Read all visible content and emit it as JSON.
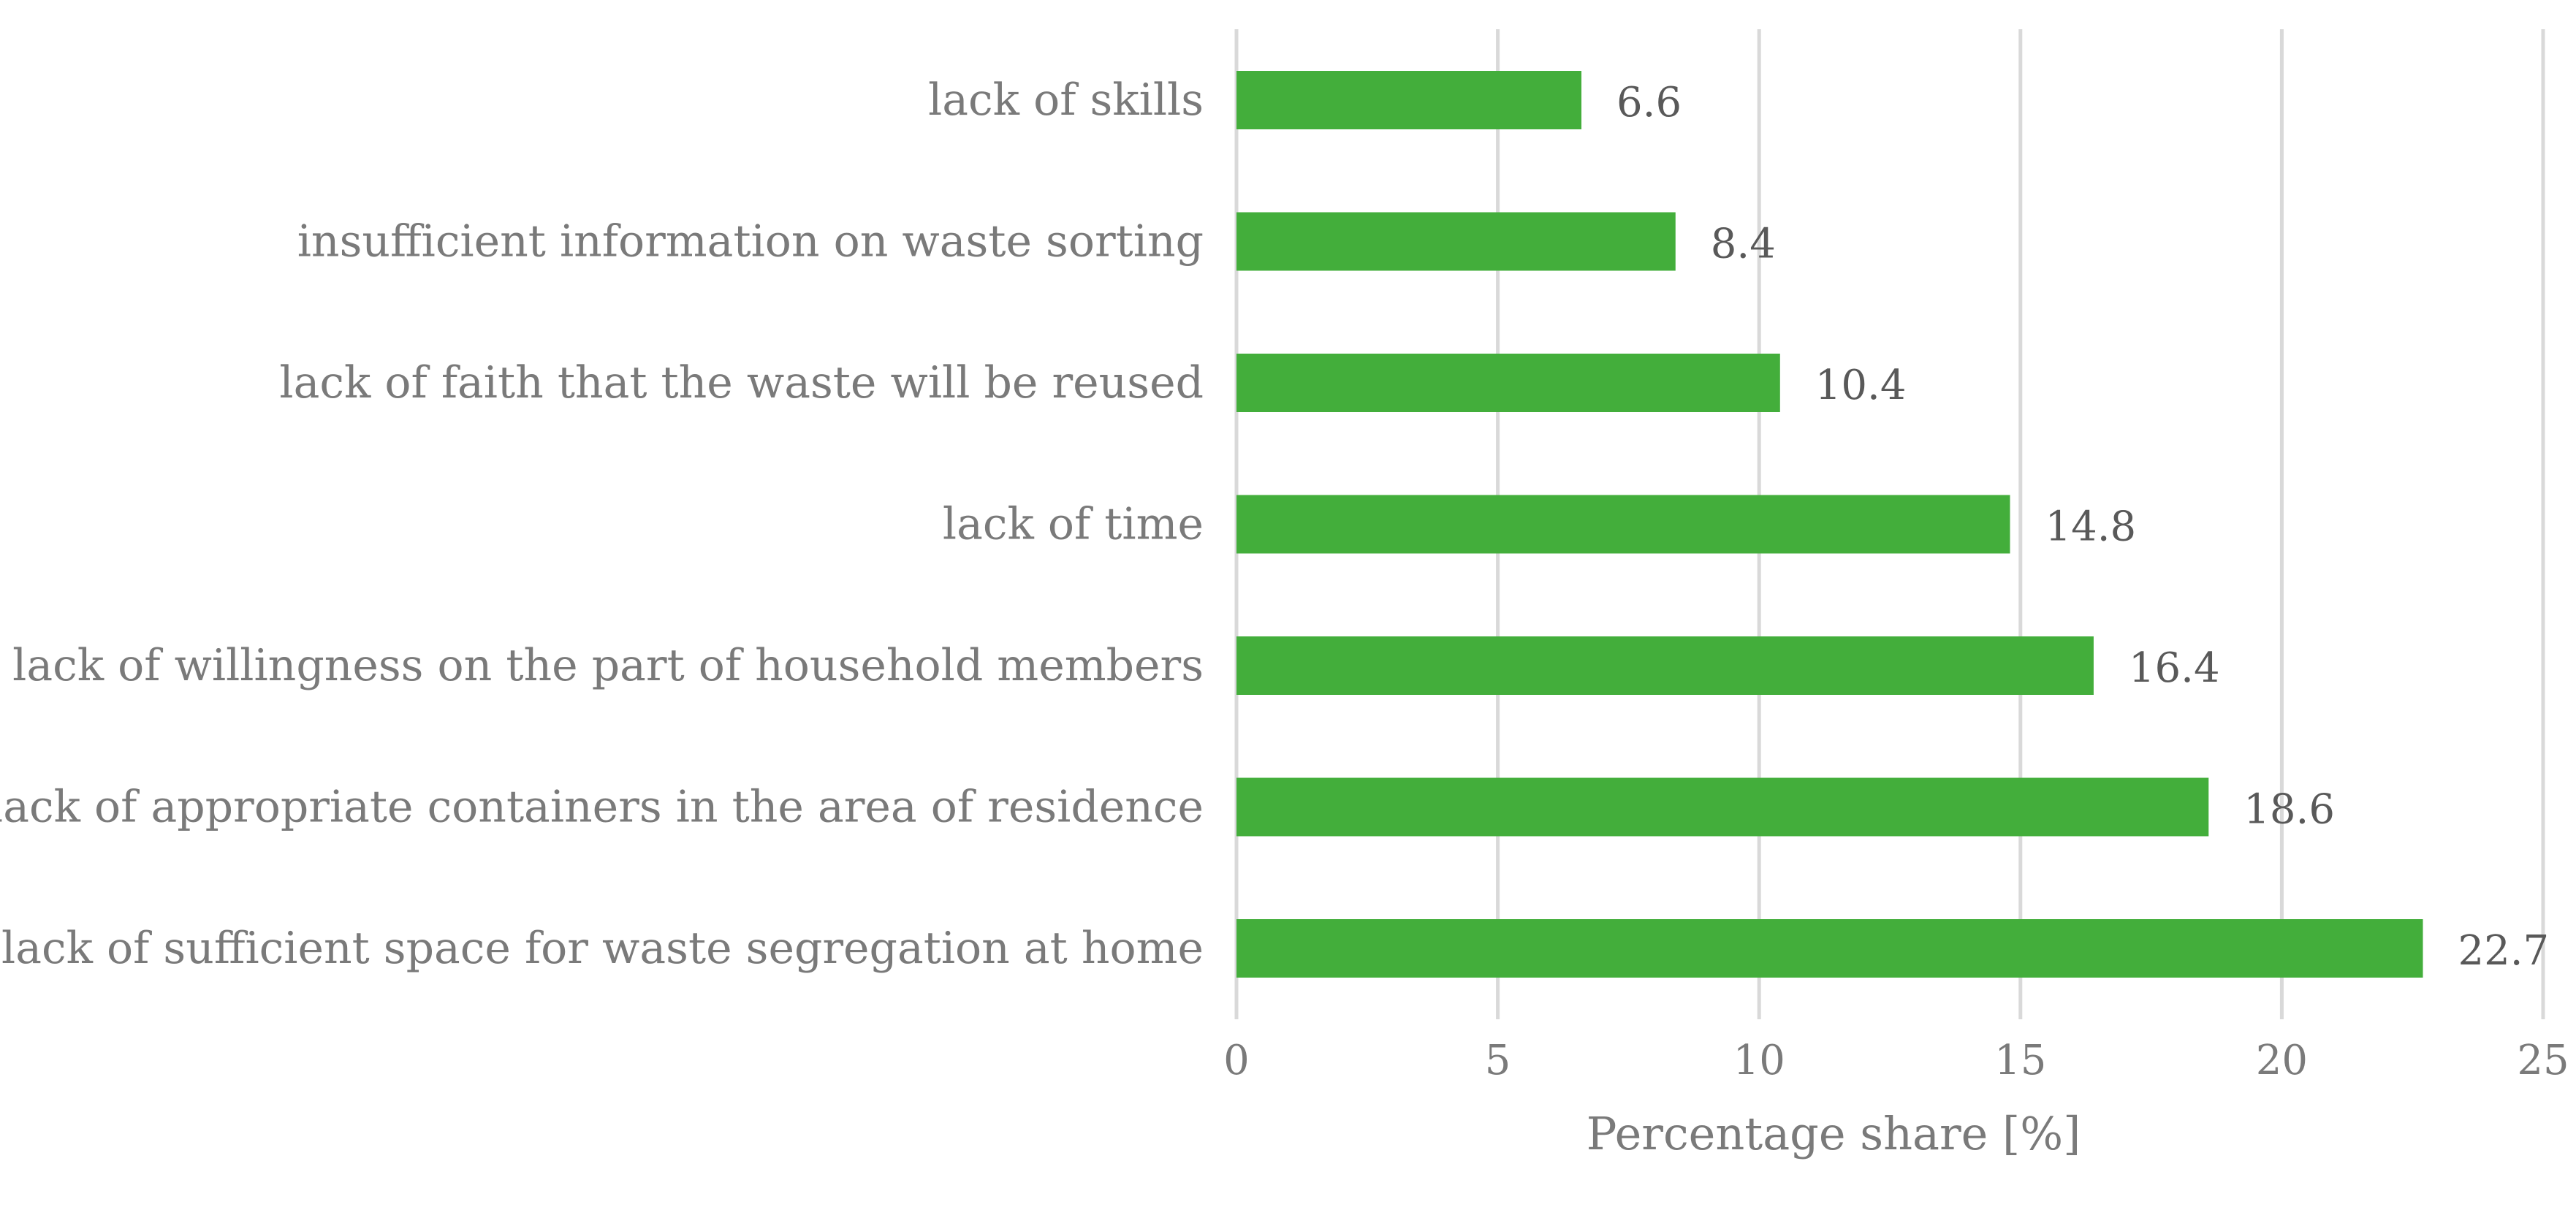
{
  "chart_data": {
    "type": "bar",
    "orientation": "horizontal",
    "categories": [
      "lack of skills",
      "insufficient information on waste sorting",
      "lack of faith that the waste will be reused",
      "lack of time",
      "lack of willingness on the part of household members",
      "lack of appropriate containers in the area of residence",
      "lack of sufficient space for waste segregation at home"
    ],
    "values": [
      6.6,
      8.4,
      10.4,
      14.8,
      16.4,
      18.6,
      22.7
    ],
    "value_labels": [
      "6.6",
      "8.4",
      "10.4",
      "14.8",
      "16.4",
      "18.6",
      "22.7"
    ],
    "title": "",
    "xlabel": "Percentage share [%]",
    "ylabel": "",
    "xlim": [
      0,
      25
    ],
    "xticks": [
      0,
      5,
      10,
      15,
      20,
      25
    ],
    "xtick_labels": [
      "0",
      "5",
      "10",
      "15",
      "20",
      "25"
    ],
    "grid": "vertical",
    "legend": "none",
    "bar_color": "#43ae3b",
    "grid_color": "#d9d9d9"
  }
}
